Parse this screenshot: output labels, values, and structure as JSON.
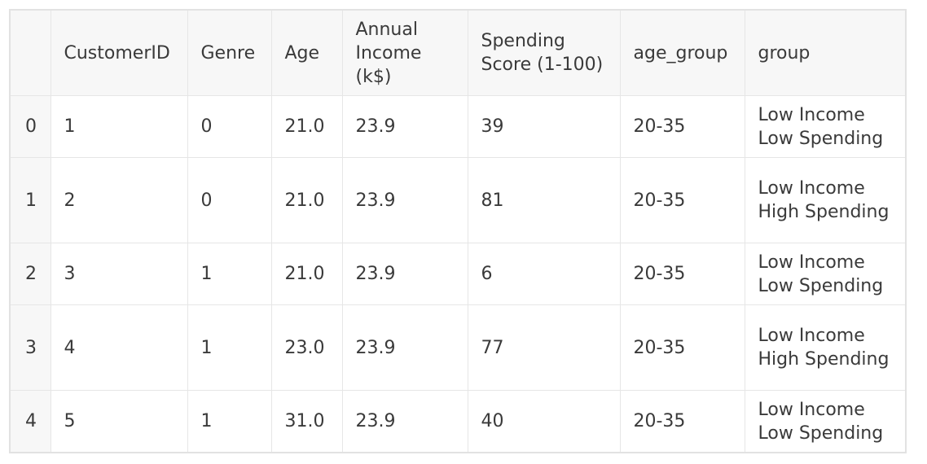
{
  "table": {
    "columns": [
      "",
      "CustomerID",
      "Genre",
      "Age",
      "Annual Income (k$)",
      "Spending Score (1-100)",
      "age_group",
      "group"
    ],
    "rows": [
      {
        "index": "0",
        "customer_id": "1",
        "genre": "0",
        "age": "21.0",
        "annual_income": "23.9",
        "spending_score": "39",
        "age_group": "20-35",
        "group": "Low Income Low Spending"
      },
      {
        "index": "1",
        "customer_id": "2",
        "genre": "0",
        "age": "21.0",
        "annual_income": "23.9",
        "spending_score": "81",
        "age_group": "20-35",
        "group": "Low Income High Spending"
      },
      {
        "index": "2",
        "customer_id": "3",
        "genre": "1",
        "age": "21.0",
        "annual_income": "23.9",
        "spending_score": "6",
        "age_group": "20-35",
        "group": "Low Income Low Spending"
      },
      {
        "index": "3",
        "customer_id": "4",
        "genre": "1",
        "age": "23.0",
        "annual_income": "23.9",
        "spending_score": "77",
        "age_group": "20-35",
        "group": "Low Income High Spending"
      },
      {
        "index": "4",
        "customer_id": "5",
        "genre": "1",
        "age": "31.0",
        "annual_income": "23.9",
        "spending_score": "40",
        "age_group": "20-35",
        "group": "Low Income Low Spending"
      }
    ]
  }
}
